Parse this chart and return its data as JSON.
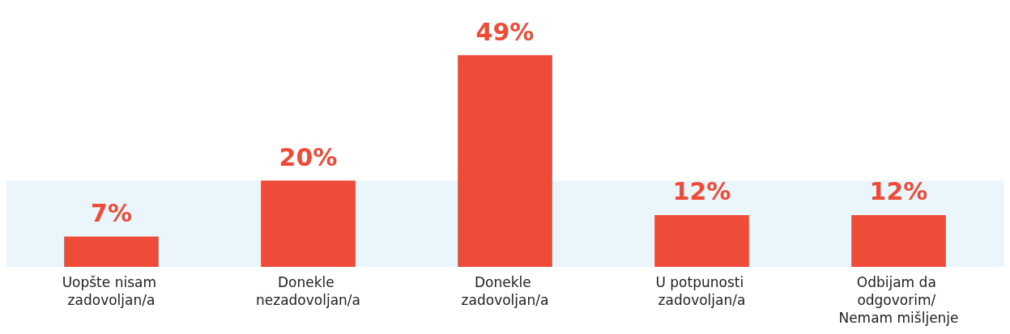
{
  "chart_data": {
    "type": "bar",
    "categories": [
      "Uopšte nisam zadovoljan/a",
      "Donekle nezadovoljan/a",
      "Donekle zadovoljan/a",
      "U potpunosti zadovoljan/a",
      "Odbijam da odgovorim/ Nemam mišljenje"
    ],
    "values": [
      7,
      20,
      49,
      12,
      12
    ],
    "color": "#ee4c38",
    "data_labels": true,
    "value_labels": [
      "7%",
      "20%",
      "49%",
      "12%",
      "12%"
    ],
    "bands": [
      {
        "axis": "y",
        "from": 0,
        "to": 20,
        "color": "#eaf6fb"
      }
    ],
    "tick_labels": "x",
    "grid": false
  }
}
